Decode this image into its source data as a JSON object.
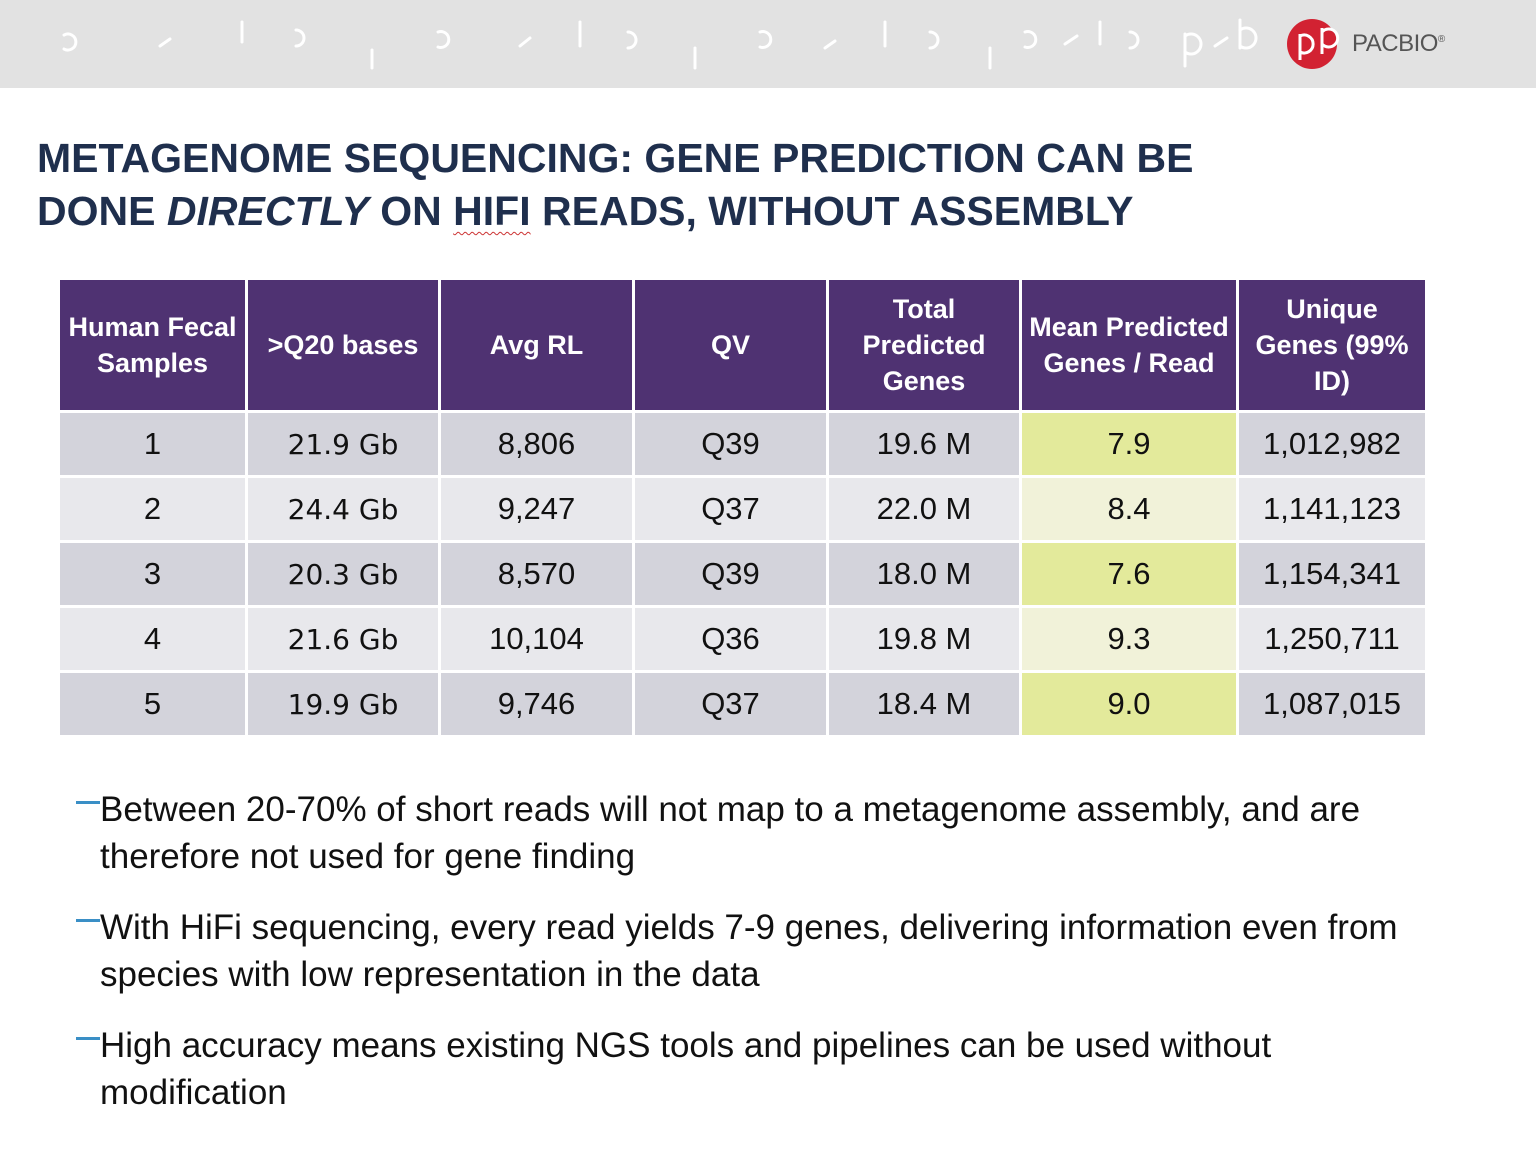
{
  "header": {
    "brand": "PACBIO",
    "brand_mark": "®"
  },
  "title": {
    "line1": "METAGENOME SEQUENCING: GENE PREDICTION CAN BE",
    "line2": [
      "DONE",
      "DIRECTLY",
      "ON",
      "HIFI",
      "READS, WITHOUT ASSEMBLY"
    ]
  },
  "table": {
    "columns": [
      "Human Fecal Samples",
      ">Q20 bases",
      "Avg RL",
      "QV",
      "Total Predicted Genes",
      "Mean Predicted Genes / Read",
      "Unique Genes (99% ID)"
    ],
    "rows": [
      [
        "1",
        "21.9 Gb",
        "8,806",
        "Q39",
        "19.6 M",
        "7.9",
        "1,012,982"
      ],
      [
        "2",
        "24.4 Gb",
        "9,247",
        "Q37",
        "22.0 M",
        "8.4",
        "1,141,123"
      ],
      [
        "3",
        "20.3 Gb",
        "8,570",
        "Q39",
        "18.0 M",
        "7.6",
        "1,154,341"
      ],
      [
        "4",
        "21.6 Gb",
        "10,104",
        "Q36",
        "19.8 M",
        "9.3",
        "1,250,711"
      ],
      [
        "5",
        "19.9 Gb",
        "9,746",
        "Q37",
        "18.4 M",
        "9.0",
        "1,087,015"
      ]
    ]
  },
  "bullets": [
    "Between 20-70% of short reads will not map to a metagenome assembly, and are therefore not used for gene finding",
    "With HiFi sequencing, every read yields 7-9 genes, delivering information even from species with low representation in the data",
    "High accuracy means existing NGS tools and pipelines can be used without modification"
  ]
}
